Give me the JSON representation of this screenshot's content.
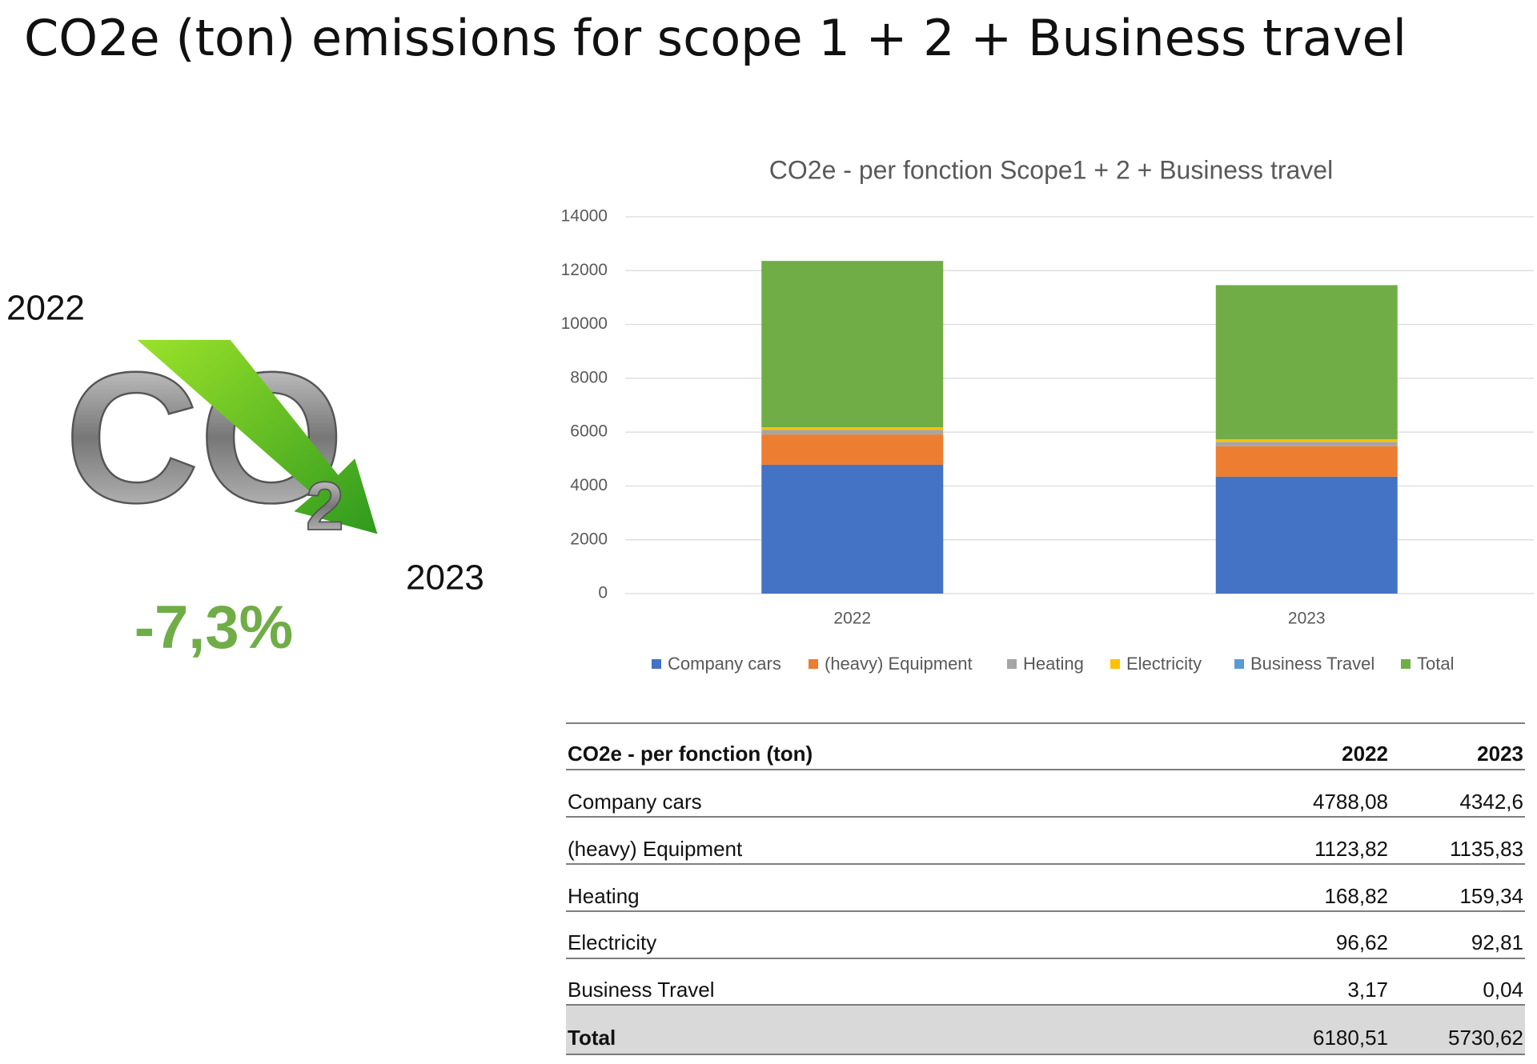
{
  "title": "CO2e (ton) emissions for scope 1 + 2 + Business travel",
  "highlight": {
    "year_from": "2022",
    "year_to": "2023",
    "change": "-7,3%",
    "icon_letters": "CO",
    "icon_subscript": "2"
  },
  "chart_data": {
    "type": "stacked_bar",
    "title": "CO2e - per fonction Scope1 + 2 + Business travel",
    "categories": [
      "2022",
      "2023"
    ],
    "series": [
      {
        "name": "Company cars",
        "color": "#4472c4",
        "values": [
          4788.08,
          4342.6
        ]
      },
      {
        "name": "(heavy) Equipment",
        "color": "#ed7d31",
        "values": [
          1123.82,
          1135.83
        ]
      },
      {
        "name": "Heating",
        "color": "#a5a5a5",
        "values": [
          168.82,
          159.34
        ]
      },
      {
        "name": "Electricity",
        "color": "#ffc000",
        "values": [
          96.62,
          92.81
        ]
      },
      {
        "name": "Business Travel",
        "color": "#5b9bd5",
        "values": [
          3.17,
          0.04
        ]
      },
      {
        "name": "Total",
        "color": "#70ad47",
        "values": [
          6180.51,
          5730.62
        ]
      }
    ],
    "ylim": [
      0,
      14000
    ],
    "yticks": [
      0,
      2000,
      4000,
      6000,
      8000,
      10000,
      12000,
      14000
    ],
    "grid": true,
    "legend": "bottom"
  },
  "table": {
    "header": [
      "CO2e - per fonction (ton)",
      "2022",
      "2023"
    ],
    "rows": [
      [
        "Company cars",
        "4788,08",
        "4342,6"
      ],
      [
        "(heavy) Equipment",
        "1123,82",
        "1135,83"
      ],
      [
        "Heating",
        "168,82",
        "159,34"
      ],
      [
        "Electricity",
        "96,62",
        "92,81"
      ],
      [
        "Business Travel",
        "3,17",
        "0,04"
      ],
      [
        "Total",
        "6180,51",
        "5730,62"
      ]
    ]
  }
}
